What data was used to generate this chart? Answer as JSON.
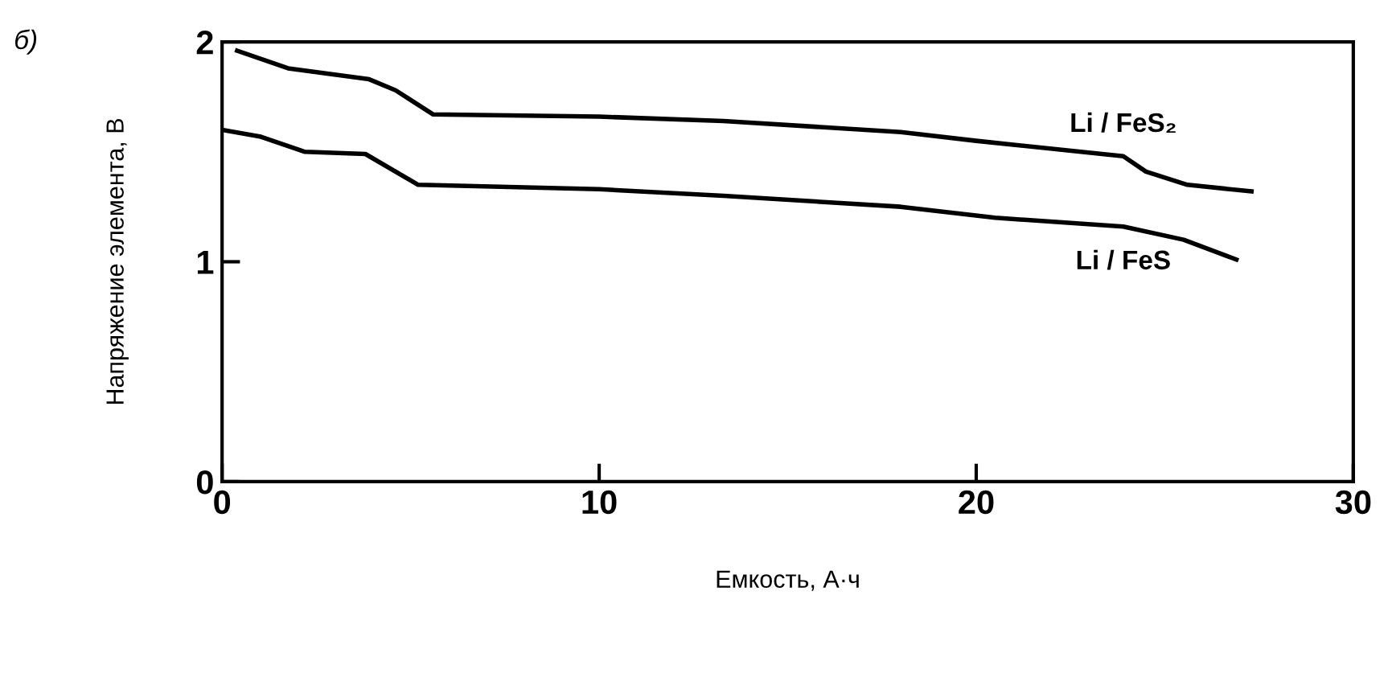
{
  "chart_data": {
    "type": "line",
    "title": "б)",
    "xlabel": "Емкость, А·ч",
    "ylabel": "Напряжение элемента, В",
    "xlim": [
      0,
      30
    ],
    "xticks": [
      0,
      10,
      20,
      30
    ],
    "ylim": [
      0,
      2
    ],
    "yticks": [
      0,
      1,
      2
    ],
    "grid": false,
    "legend": false,
    "series": [
      {
        "name": "Li / FeS₂",
        "color": "#000000",
        "x": [
          0.4,
          1.75,
          3.9,
          4.6,
          5.6,
          10,
          13.3,
          18,
          20,
          23.9,
          24.5,
          25.6,
          27.3
        ],
        "values": [
          1.96,
          1.88,
          1.83,
          1.78,
          1.67,
          1.66,
          1.64,
          1.59,
          1.55,
          1.48,
          1.41,
          1.35,
          1.32
        ]
      },
      {
        "name": "Li / FeS",
        "color": "#000000",
        "x": [
          0,
          1,
          2.2,
          3.8,
          5.2,
          10,
          13.3,
          18,
          20.5,
          23.9,
          25.5,
          26.9
        ],
        "values": [
          1.6,
          1.57,
          1.5,
          1.49,
          1.35,
          1.33,
          1.3,
          1.25,
          1.2,
          1.16,
          1.1,
          1.01
        ]
      }
    ]
  }
}
